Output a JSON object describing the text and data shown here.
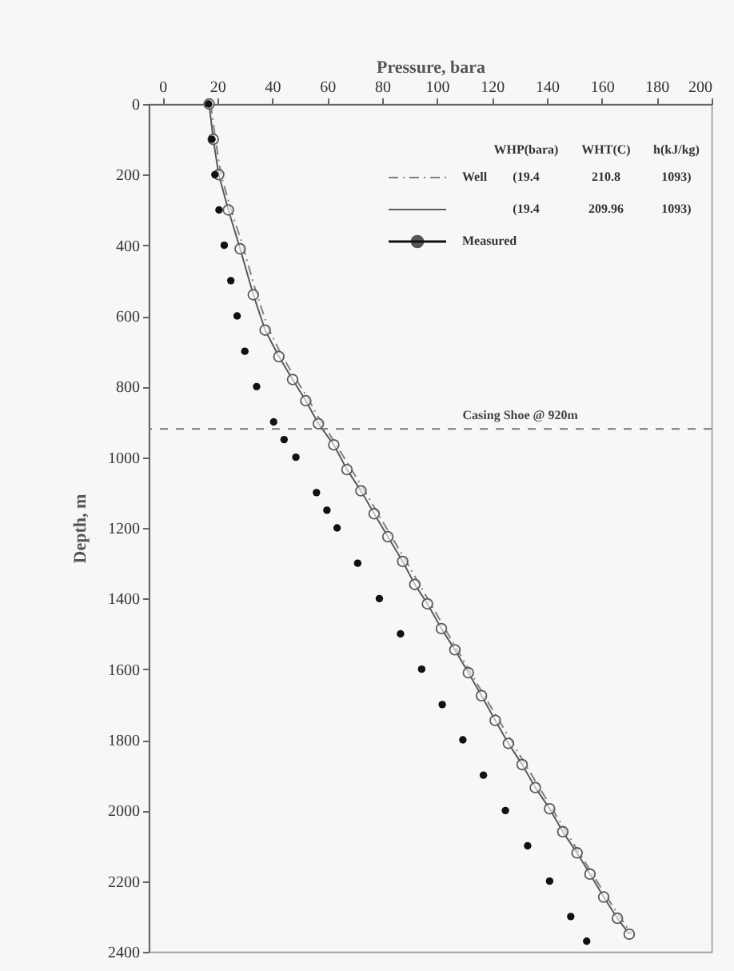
{
  "chart_data": {
    "type": "line",
    "xlabel": "Pressure, bara",
    "ylabel": "Depth, m",
    "xlim": [
      -5,
      200
    ],
    "xticks": [
      0,
      20,
      40,
      60,
      80,
      100,
      120,
      140,
      160,
      180,
      200
    ],
    "ylim": [
      2400,
      0
    ],
    "yticks": [
      0,
      200,
      400,
      600,
      800,
      1000,
      1200,
      1400,
      1600,
      1800,
      2000,
      2200,
      2400
    ],
    "grid": false,
    "legend": "top right",
    "series": [
      {
        "name": "Well",
        "color": "#808080",
        "line_style": "dashdot",
        "marker": "none",
        "x": [
          17.6,
          19.3,
          21.3,
          25,
          29.2,
          34,
          38.3,
          43.3,
          48.3,
          53.1,
          57.7,
          60.5,
          73.2,
          88.4,
          102.5,
          116.8,
          131.8,
          146.6,
          161.4,
          170.8
        ],
        "values": [
          0,
          100,
          200,
          300,
          400,
          530,
          630,
          710,
          775,
          835,
          900,
          930,
          1090,
          1290,
          1480,
          1670,
          1865,
          2055,
          2240,
          2350
        ]
      },
      {
        "color": "#5a5a5a",
        "line_style": "solid",
        "marker": "circle",
        "x": [
          17,
          18.5,
          20.5,
          24,
          28.3,
          33.1,
          37.4,
          42.4,
          47.4,
          52.2,
          56.8,
          62.4,
          67.2,
          72.3,
          77.1,
          82.1,
          87.5,
          91.9,
          96.5,
          101.6,
          106.5,
          111.4,
          116.2,
          121.2,
          126,
          131,
          135.8,
          141,
          145.8,
          151,
          155.7,
          160.7,
          165.7,
          170
        ],
        "values": [
          0,
          100,
          200,
          300,
          410,
          540,
          640,
          715,
          780,
          840,
          905,
          965,
          1035,
          1095,
          1160,
          1225,
          1295,
          1360,
          1415,
          1485,
          1545,
          1610,
          1675,
          1745,
          1810,
          1870,
          1935,
          1995,
          2060,
          2120,
          2180,
          2245,
          2305,
          2350
        ]
      },
      {
        "name": "Measured",
        "type": "scatter",
        "color": "#111111",
        "marker": "circle",
        "x": [
          16.8,
          18,
          19.1,
          20.6,
          22.5,
          24.9,
          27.2,
          30,
          34.3,
          40.5,
          44.3,
          48.6,
          56.1,
          59.9,
          63.6,
          71.1,
          79,
          86.7,
          94.4,
          101.9,
          109.4,
          116.9,
          124.9,
          133,
          141,
          148.7,
          154.5
        ],
        "values": [
          0,
          100,
          200,
          300,
          400,
          500,
          600,
          700,
          800,
          900,
          950,
          1000,
          1100,
          1150,
          1200,
          1300,
          1400,
          1500,
          1600,
          1700,
          1800,
          1900,
          2000,
          2100,
          2200,
          2300,
          2370
        ]
      }
    ],
    "ref_lines": [
      {
        "axis": "y",
        "value": 920,
        "label": "Casing Shoe @ 920m",
        "line_style": "dashed",
        "color": "#777777"
      }
    ],
    "annotations": [
      "WHP(bara)",
      "WHT(C)",
      "h(kJ/kg)",
      "(19.4",
      "210.8",
      "1093)",
      "(19.4",
      "209.96",
      "1093)"
    ]
  }
}
